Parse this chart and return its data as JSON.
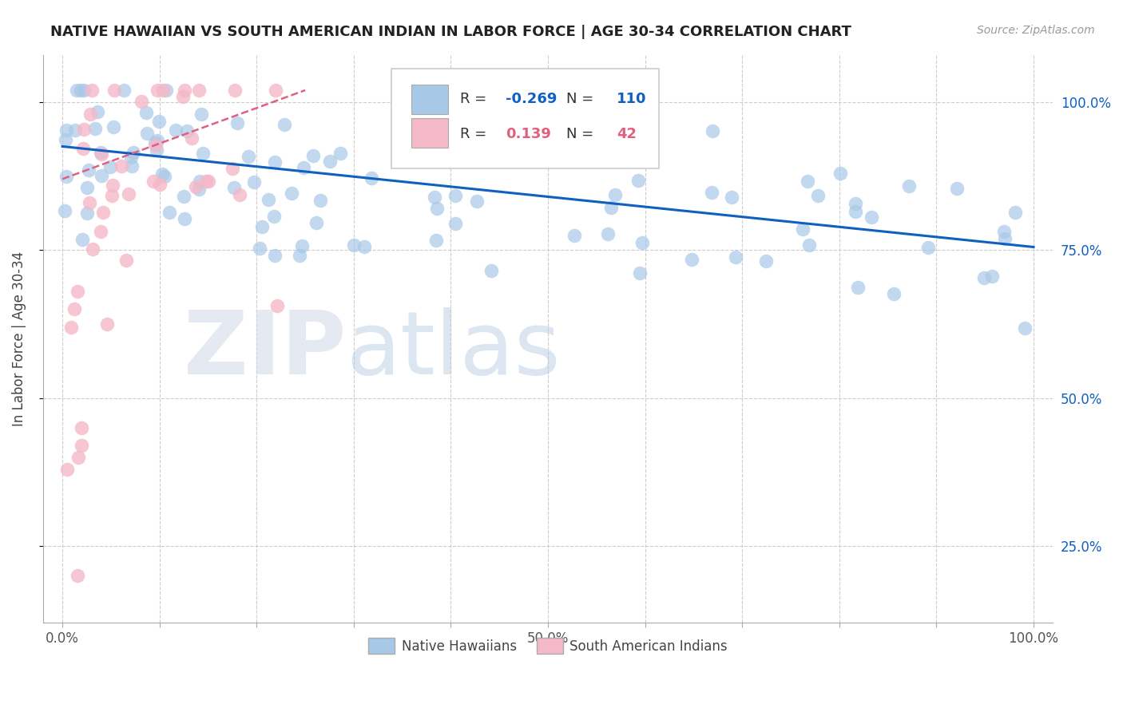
{
  "title": "NATIVE HAWAIIAN VS SOUTH AMERICAN INDIAN IN LABOR FORCE | AGE 30-34 CORRELATION CHART",
  "source": "Source: ZipAtlas.com",
  "ylabel": "In Labor Force | Age 30-34",
  "xlim": [
    -0.02,
    1.02
  ],
  "ylim": [
    0.12,
    1.08
  ],
  "xticks": [
    0.0,
    0.1,
    0.2,
    0.3,
    0.4,
    0.5,
    0.6,
    0.7,
    0.8,
    0.9,
    1.0
  ],
  "xticklabels": [
    "0.0%",
    "",
    "",
    "",
    "",
    "50.0%",
    "",
    "",
    "",
    "",
    "100.0%"
  ],
  "yticks": [
    0.25,
    0.5,
    0.75,
    1.0
  ],
  "yticklabels_right": [
    "25.0%",
    "50.0%",
    "75.0%",
    "100.0%"
  ],
  "blue_r": "-0.269",
  "blue_n": "110",
  "pink_r": "0.139",
  "pink_n": "42",
  "blue_color": "#a8c8e8",
  "pink_color": "#f5b8c8",
  "blue_line_color": "#1060c0",
  "pink_line_color": "#e06080",
  "watermark_zip": "ZIP",
  "watermark_atlas": "atlas",
  "legend_label_blue": "Native Hawaiians",
  "legend_label_pink": "South American Indians",
  "blue_trend_x0": 0.0,
  "blue_trend_y0": 0.925,
  "blue_trend_x1": 1.0,
  "blue_trend_y1": 0.755,
  "pink_trend_x0": 0.0,
  "pink_trend_y0": 0.87,
  "pink_trend_x1": 0.25,
  "pink_trend_y1": 1.02
}
